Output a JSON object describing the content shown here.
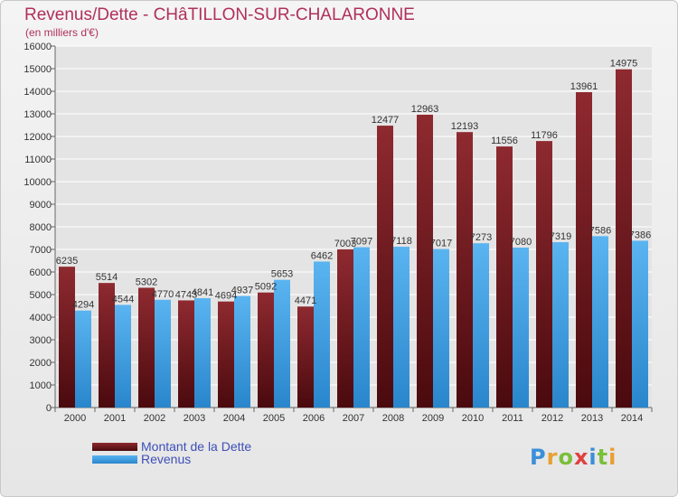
{
  "header": {
    "title": "Revenus/Dette - CHâTILLON-SUR-CHALARONNE",
    "subtitle": "(en milliers d'€)"
  },
  "logo": {
    "text": "Proxiti"
  },
  "chart_data": {
    "type": "bar",
    "categories": [
      "2000",
      "2001",
      "2002",
      "2003",
      "2004",
      "2005",
      "2006",
      "2007",
      "2008",
      "2009",
      "2010",
      "2011",
      "2012",
      "2013",
      "2014"
    ],
    "series": [
      {
        "name": "Montant de la Dette",
        "color": "#7a1e24",
        "values": [
          6235,
          5514,
          5302,
          4743,
          4694,
          5092,
          4471,
          7003,
          12477,
          12963,
          12193,
          11556,
          11796,
          13961,
          14975
        ],
        "labels": [
          "6235",
          "5514",
          "5302",
          "4743",
          "4694",
          "5092",
          "4471",
          "7003",
          "12477",
          "12963",
          "12193",
          "11556",
          "11796",
          "13961",
          "14975"
        ]
      },
      {
        "name": "Revenus",
        "color": "#3f9fe0",
        "values": [
          4294,
          4544,
          4770,
          4841,
          4937,
          5653,
          6462,
          7097,
          7118,
          7017,
          7273,
          7080,
          7319,
          7586,
          7386
        ],
        "labels": [
          "4294",
          "4544",
          "4770",
          "4841",
          "4937",
          "5653",
          "6462",
          "7097",
          "7118",
          "7017",
          "7273",
          "7080",
          "7319",
          "7586",
          "7386"
        ]
      }
    ],
    "ylim": [
      0,
      16000
    ],
    "yticks": [
      "0",
      "1000",
      "2000",
      "3000",
      "4000",
      "5000",
      "6000",
      "7000",
      "8000",
      "9000",
      "10000",
      "11000",
      "12000",
      "13000",
      "14000",
      "15000",
      "16000"
    ],
    "grid": true,
    "legend_position": "bottom-left"
  }
}
